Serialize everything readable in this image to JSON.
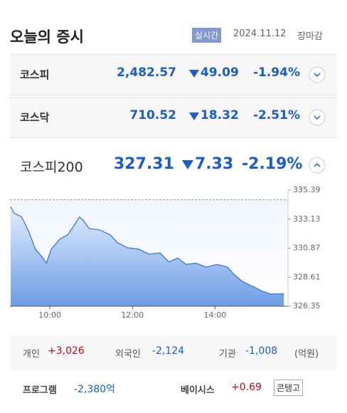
{
  "header": {
    "title": "오늘의 증시",
    "badge": "실시간",
    "date": "2024.11.12",
    "status": "장마감"
  },
  "indices": [
    {
      "name": "코스피",
      "value": "2,482.57",
      "change": "49.09",
      "rate": "-1.94%"
    },
    {
      "name": "코스닥",
      "value": "710.52",
      "change": "18.32",
      "rate": "-2.51%"
    }
  ],
  "featured": {
    "name": "코스피200",
    "value": "327.31",
    "change": "7.33",
    "rate": "-2.19%"
  },
  "chart_data": {
    "type": "line",
    "x": [
      543,
      548,
      559,
      569,
      579,
      590,
      595,
      602,
      615,
      626,
      636,
      643,
      649,
      657,
      672,
      688,
      698,
      713,
      729,
      744,
      760,
      773,
      786,
      798,
      812,
      827,
      843,
      858,
      868,
      879,
      894,
      910,
      920,
      940
    ],
    "values": [
      334.1,
      333.6,
      333.3,
      332.2,
      330.8,
      330.1,
      329.7,
      330.8,
      331.6,
      331.9,
      332.7,
      333.3,
      333.0,
      332.4,
      332.3,
      331.9,
      331.3,
      330.9,
      330.8,
      330.4,
      330.5,
      329.8,
      330.1,
      329.6,
      329.7,
      329.4,
      329.6,
      329.4,
      328.8,
      328.3,
      327.9,
      327.5,
      327.3,
      327.31
    ],
    "reference": 334.64,
    "xlim": [
      542,
      946
    ],
    "xticks": [
      {
        "value": 600,
        "label": "10:00"
      },
      {
        "value": 720,
        "label": "12:00"
      },
      {
        "value": 840,
        "label": "14:00"
      }
    ],
    "ylim": [
      326.35,
      335.39
    ],
    "yticks": [
      326.35,
      328.61,
      330.87,
      333.13,
      335.39
    ],
    "color": "#3a78d8"
  },
  "investors": {
    "items": [
      {
        "label": "개인",
        "value": "+3,026"
      },
      {
        "label": "외국인",
        "value": "-2,124"
      },
      {
        "label": "기관",
        "value": "-1,008"
      }
    ],
    "unit": "(억원)"
  },
  "program": {
    "label": "프로그램",
    "value": "-2,380억"
  },
  "basis": {
    "label": "베이시스",
    "value": "+0.69",
    "button": "콘탱고"
  }
}
